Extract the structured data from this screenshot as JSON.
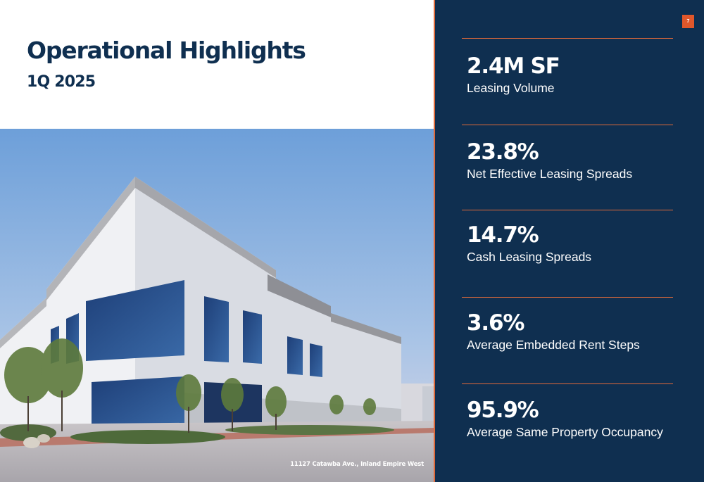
{
  "header": {
    "title": "Operational Highlights",
    "period": "1Q 2025"
  },
  "photo": {
    "caption": "11127 Catawba Ave., Inland Empire West"
  },
  "page": {
    "number": "7"
  },
  "metrics": [
    {
      "value": "2.4M SF",
      "label": "Leasing Volume"
    },
    {
      "value": "23.8%",
      "label": "Net Effective Leasing Spreads"
    },
    {
      "value": "14.7%",
      "label": "Cash Leasing Spreads"
    },
    {
      "value": "3.6%",
      "label": "Average Embedded Rent Steps"
    },
    {
      "value": "95.9%",
      "label": "Average Same Property Occupancy"
    }
  ],
  "colors": {
    "navy": "#0f2f50",
    "accent": "#e06a3a",
    "badge": "#e0572b"
  }
}
